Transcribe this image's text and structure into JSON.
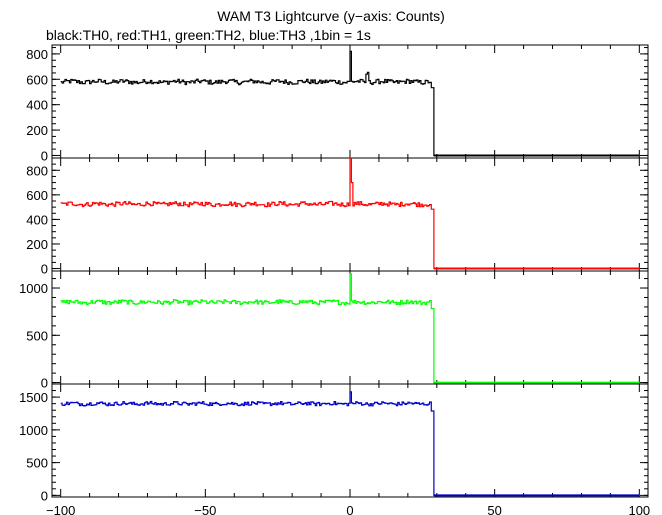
{
  "chart_data": {
    "type": "line",
    "title": "WAM T3 Lightcurve (y−axis: Counts)",
    "subtitle": "black:TH0, red:TH1, green:TH2, blue:TH3 ,1bin = 1s",
    "xlabel": "",
    "ylabel": "",
    "xlim": [
      -103,
      103
    ],
    "xticks": [
      -100,
      -50,
      0,
      50,
      100
    ],
    "xtick_labels": [
      "−100",
      "−50",
      "0",
      "50",
      "100"
    ],
    "shared_x": true,
    "panels": [
      {
        "name": "TH0",
        "color": "#000000",
        "ylim": [
          -20,
          870
        ],
        "yticks": [
          0,
          200,
          400,
          600,
          800
        ],
        "yticks_minor_step": 50,
        "profile": {
          "baseline": 580,
          "noise": 18,
          "x_start": -100,
          "cutoff_start": 27.5,
          "cutoff_end": 29,
          "x_end": 100,
          "spikes": [
            {
              "x": 0,
              "y": 820
            },
            {
              "x": 5.5,
              "y": 640
            },
            {
              "x": 6,
              "y": 655
            }
          ]
        }
      },
      {
        "name": "TH1",
        "color": "#ff0000",
        "ylim": [
          -20,
          900
        ],
        "yticks": [
          0,
          200,
          400,
          600,
          800
        ],
        "yticks_minor_step": 50,
        "profile": {
          "baseline": 525,
          "noise": 18,
          "x_start": -100,
          "cutoff_start": 27.5,
          "cutoff_end": 29,
          "x_end": 100,
          "spikes": [
            {
              "x": 0,
              "y": 900
            },
            {
              "x": 0.5,
              "y": 700
            }
          ]
        }
      },
      {
        "name": "TH2",
        "color": "#00ff00",
        "ylim": [
          -15,
          1180
        ],
        "yticks": [
          0,
          500,
          1000
        ],
        "yticks_minor_step": 100,
        "profile": {
          "baseline": 850,
          "noise": 22,
          "x_start": -100,
          "cutoff_start": 27.5,
          "cutoff_end": 29,
          "x_end": 100,
          "spikes": [
            {
              "x": 0,
              "y": 1150
            }
          ]
        }
      },
      {
        "name": "TH3",
        "color": "#0000cc",
        "ylim": [
          -25,
          1700
        ],
        "yticks": [
          0,
          500,
          1000,
          1500
        ],
        "yticks_minor_step": 100,
        "profile": {
          "baseline": 1400,
          "noise": 28,
          "x_start": -100,
          "cutoff_start": 27.5,
          "cutoff_end": 29,
          "x_end": 100,
          "spikes": [
            {
              "x": 0,
              "y": 1580
            }
          ]
        }
      }
    ]
  }
}
